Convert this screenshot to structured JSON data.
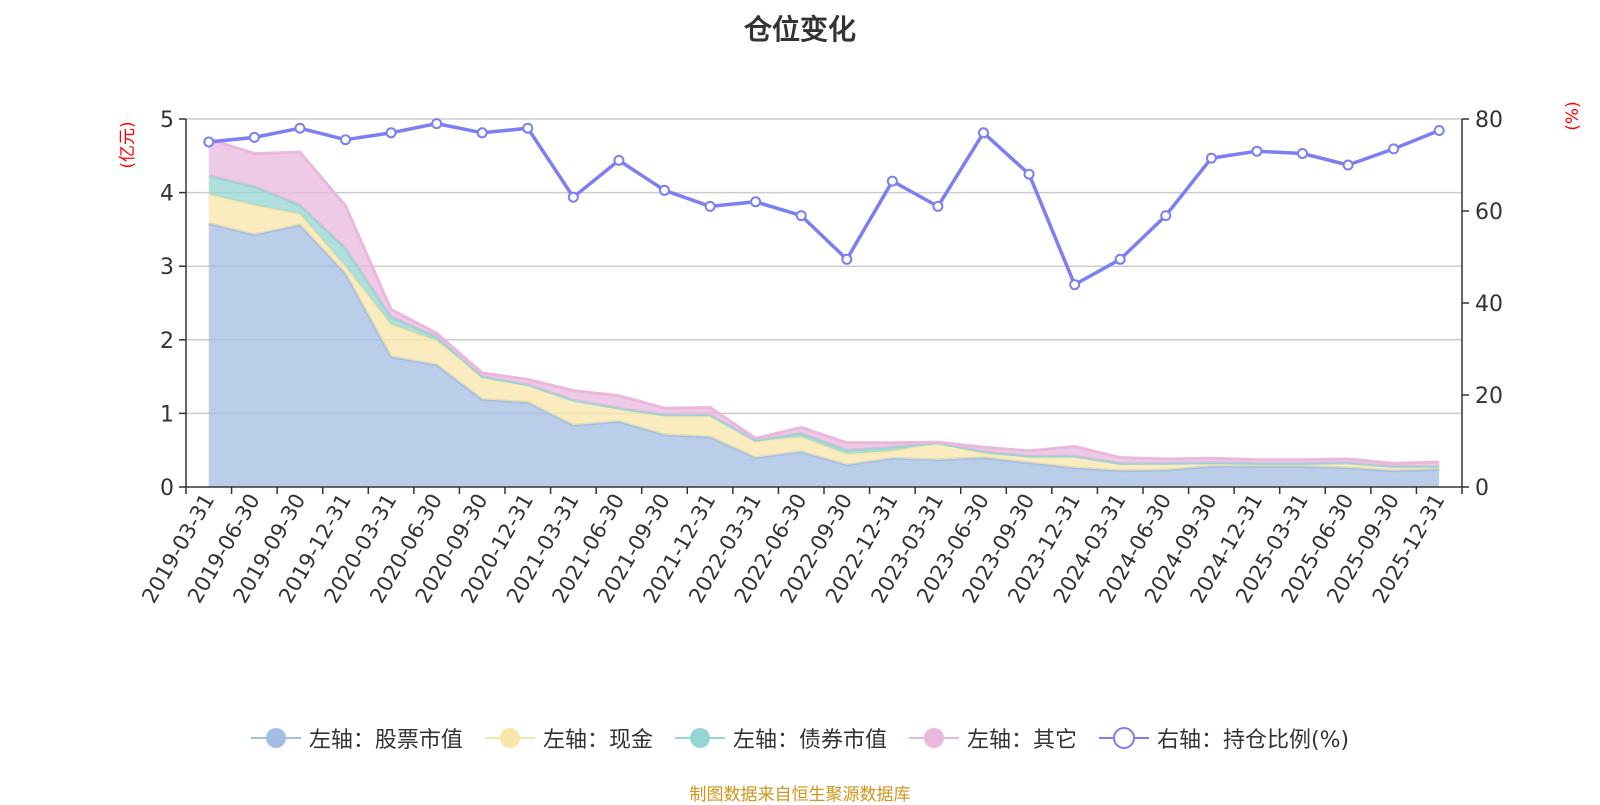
{
  "title": "仓位变化",
  "source": "制图数据来自恒生聚源数据库",
  "colors": {
    "stock": "#a3bde3",
    "cash": "#f8e6a8",
    "bond": "#95d5d3",
    "other": "#eab8dd",
    "ratio": "#7b7ff2"
  },
  "chart_data": {
    "type": "area",
    "title": "仓位变化",
    "left_axis": {
      "label": "(亿元)",
      "ylim": [
        0,
        5
      ],
      "ticks": [
        0,
        1,
        2,
        3,
        4,
        5
      ]
    },
    "right_axis": {
      "label": "(%)",
      "ylim": [
        0,
        80
      ],
      "ticks": [
        0,
        20,
        40,
        60,
        80
      ]
    },
    "categories": [
      "2019-03-31",
      "2019-06-30",
      "2019-09-30",
      "2019-12-31",
      "2020-03-31",
      "2020-06-30",
      "2020-09-30",
      "2020-12-31",
      "2021-03-31",
      "2021-06-30",
      "2021-09-30",
      "2021-12-31",
      "2022-03-31",
      "2022-06-30",
      "2022-09-30",
      "2022-12-31",
      "2023-03-31",
      "2023-06-30",
      "2023-09-30",
      "2023-12-31",
      "2024-03-31",
      "2024-06-30",
      "2024-09-30",
      "2024-12-31",
      "2025-03-31",
      "2025-06-30",
      "2025-09-30",
      "2025-12-31"
    ],
    "series": [
      {
        "name": "左轴：股票市值",
        "axis": "left",
        "type": "stacked-area",
        "color_key": "stock",
        "values": [
          3.58,
          3.43,
          3.56,
          2.9,
          1.77,
          1.66,
          1.19,
          1.15,
          0.84,
          0.89,
          0.71,
          0.68,
          0.4,
          0.48,
          0.3,
          0.39,
          0.37,
          0.4,
          0.33,
          0.26,
          0.22,
          0.23,
          0.28,
          0.28,
          0.28,
          0.26,
          0.22,
          0.24
        ]
      },
      {
        "name": "左轴：现金",
        "axis": "left",
        "type": "stacked-area",
        "color_key": "cash",
        "values": [
          0.4,
          0.4,
          0.15,
          0.1,
          0.44,
          0.33,
          0.31,
          0.24,
          0.34,
          0.18,
          0.27,
          0.3,
          0.23,
          0.2,
          0.15,
          0.1,
          0.23,
          0.06,
          0.09,
          0.16,
          0.1,
          0.09,
          0.05,
          0.04,
          0.04,
          0.06,
          0.06,
          0.04
        ]
      },
      {
        "name": "左轴：债券市值",
        "axis": "left",
        "type": "stacked-area",
        "color_key": "bond",
        "values": [
          0.25,
          0.25,
          0.12,
          0.24,
          0.1,
          0.05,
          0,
          0,
          0,
          0,
          0,
          0,
          0,
          0.05,
          0.05,
          0.05,
          0,
          0.02,
          0,
          0,
          0,
          0,
          0,
          0,
          0,
          0.01,
          0,
          0
        ]
      },
      {
        "name": "左轴：其它",
        "axis": "left",
        "type": "stacked-area",
        "color_key": "other",
        "values": [
          0.5,
          0.45,
          0.72,
          0.58,
          0.1,
          0.05,
          0.05,
          0.07,
          0.13,
          0.17,
          0.09,
          0.1,
          0.03,
          0.08,
          0.1,
          0.06,
          0.01,
          0.06,
          0.07,
          0.13,
          0.08,
          0.06,
          0.06,
          0.05,
          0.05,
          0.05,
          0.04,
          0.06
        ]
      },
      {
        "name": "右轴：持仓比例(%)",
        "axis": "right",
        "type": "line",
        "color_key": "ratio",
        "values": [
          75,
          76,
          78,
          75.5,
          77,
          79,
          77,
          78,
          63,
          71,
          64.5,
          61,
          62,
          59,
          49.5,
          66.5,
          61,
          77,
          68,
          44,
          49.5,
          59,
          71.5,
          73,
          72.5,
          70,
          73.5,
          77.5
        ]
      }
    ],
    "legend_position": "bottom"
  }
}
